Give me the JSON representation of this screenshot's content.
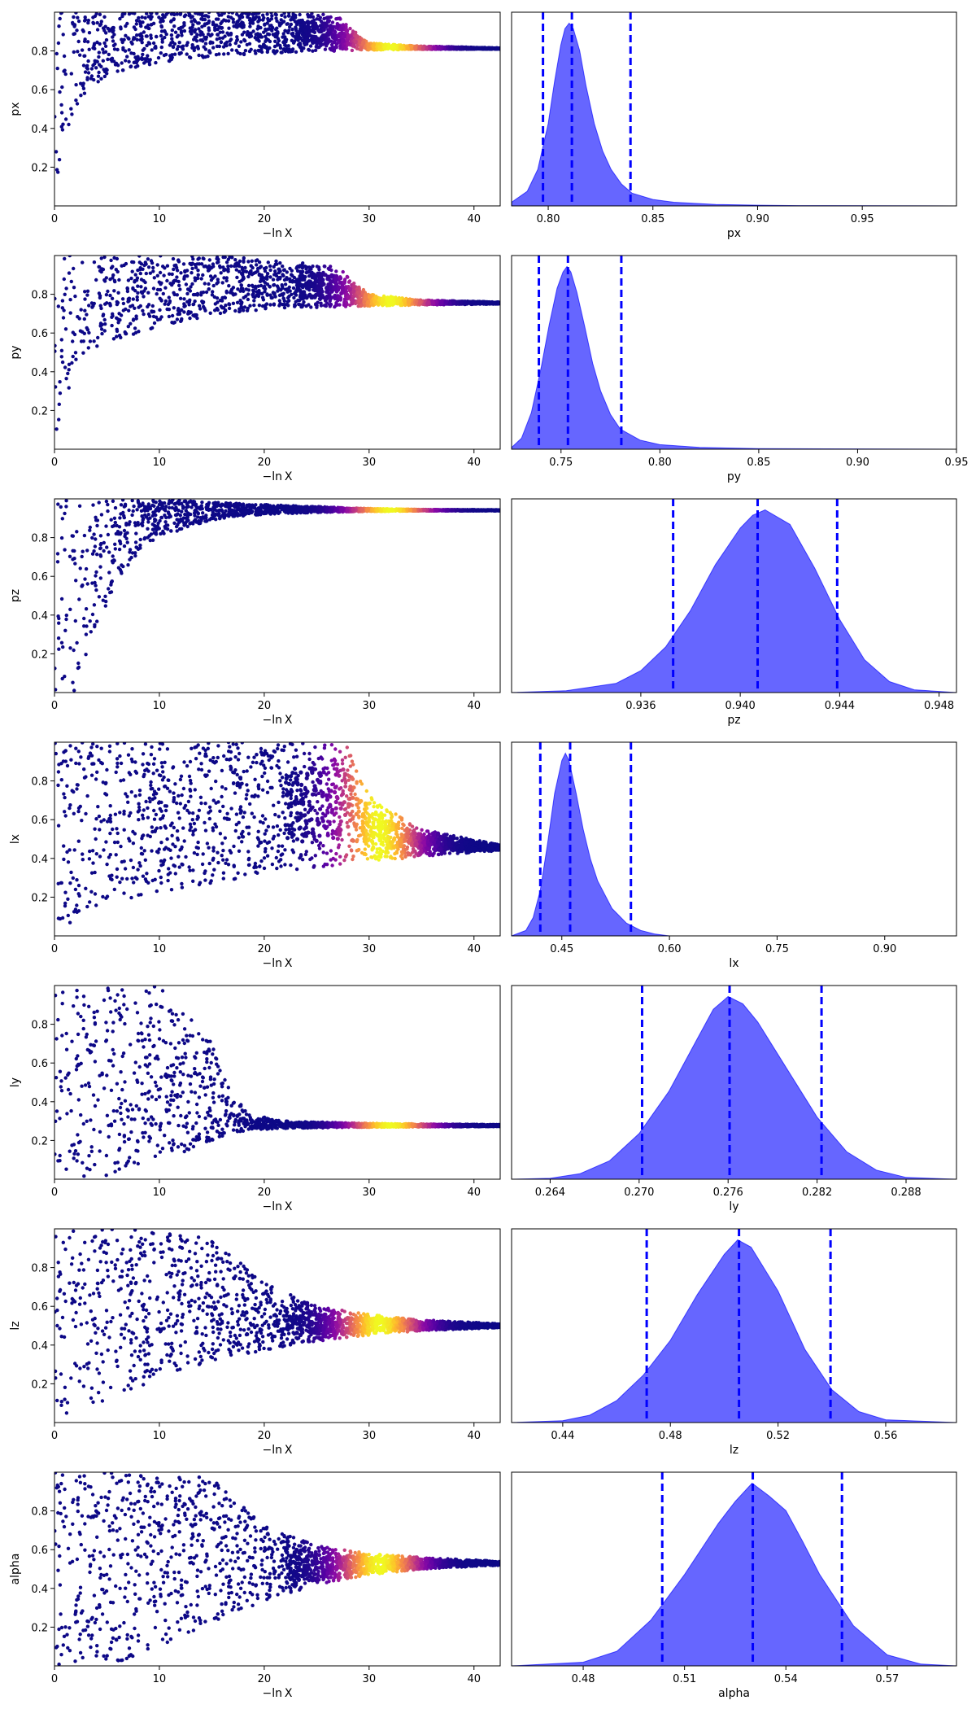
{
  "figure": {
    "colormap": "plasma",
    "scatter_base_color": "#0d0887",
    "density_color": "#0000ff",
    "quantile_line_color": "#0000ff"
  },
  "chart_data": [
    {
      "type": "scatter",
      "panel": "trace",
      "parameter": "px",
      "xlabel": "−ln X",
      "ylabel": "px",
      "xlim": [
        0,
        42.5
      ],
      "ylim": [
        0,
        1
      ],
      "xticks": [
        "0",
        "10",
        "20",
        "30",
        "40"
      ],
      "yticks": [
        "0.2",
        "0.4",
        "0.6",
        "0.8"
      ],
      "envelope": {
        "x": [
          0,
          0.5,
          1,
          2,
          3,
          5,
          8,
          12,
          16,
          20,
          24,
          27,
          30,
          35,
          42.5
        ],
        "lower": [
          0,
          0.22,
          0.36,
          0.5,
          0.58,
          0.66,
          0.72,
          0.755,
          0.775,
          0.785,
          0.795,
          0.8,
          0.805,
          0.808,
          0.81
        ],
        "upper": [
          1,
          1,
          1,
          1,
          1,
          1,
          1,
          1,
          1,
          1,
          1,
          0.98,
          0.84,
          0.825,
          0.815
        ]
      },
      "color_peak_x": 32
    },
    {
      "type": "area",
      "panel": "marginal",
      "parameter": "px",
      "xlabel": "px",
      "xlim": [
        0.7825,
        0.995
      ],
      "xticks": [
        "0.80",
        "0.85",
        "0.90",
        "0.95"
      ],
      "density": {
        "x": [
          0.7825,
          0.79,
          0.795,
          0.8,
          0.803,
          0.806,
          0.808,
          0.81,
          0.812,
          0.815,
          0.818,
          0.822,
          0.826,
          0.83,
          0.835,
          0.84,
          0.85,
          0.86,
          0.88,
          0.9,
          0.92,
          0.995
        ],
        "y": [
          0.02,
          0.08,
          0.2,
          0.45,
          0.68,
          0.88,
          0.97,
          1.0,
          0.97,
          0.85,
          0.66,
          0.45,
          0.3,
          0.2,
          0.12,
          0.07,
          0.035,
          0.02,
          0.008,
          0.004,
          0.002,
          0.0
        ]
      },
      "quantiles": [
        0.7975,
        0.8113,
        0.8393
      ]
    },
    {
      "type": "scatter",
      "panel": "trace",
      "parameter": "py",
      "xlabel": "−ln X",
      "ylabel": "py",
      "xlim": [
        0,
        42.5
      ],
      "ylim": [
        0,
        1
      ],
      "xticks": [
        "0",
        "10",
        "20",
        "30",
        "40"
      ],
      "yticks": [
        "0.2",
        "0.4",
        "0.6",
        "0.8"
      ],
      "envelope": {
        "x": [
          0,
          1,
          2,
          3,
          5,
          8,
          12,
          16,
          20,
          24,
          27,
          30,
          35,
          42.5
        ],
        "lower": [
          0,
          0.25,
          0.42,
          0.5,
          0.55,
          0.6,
          0.66,
          0.7,
          0.72,
          0.73,
          0.735,
          0.74,
          0.745,
          0.75
        ],
        "upper": [
          1,
          1,
          1,
          1,
          1,
          1,
          1,
          1,
          0.98,
          0.96,
          0.94,
          0.8,
          0.77,
          0.76
        ]
      },
      "color_peak_x": 32
    },
    {
      "type": "area",
      "panel": "marginal",
      "parameter": "py",
      "xlabel": "py",
      "xlim": [
        0.725,
        0.95
      ],
      "xticks": [
        "0.75",
        "0.80",
        "0.85",
        "0.90",
        "0.95"
      ],
      "density": {
        "x": [
          0.725,
          0.73,
          0.735,
          0.74,
          0.744,
          0.748,
          0.751,
          0.753,
          0.755,
          0.758,
          0.762,
          0.766,
          0.77,
          0.775,
          0.78,
          0.79,
          0.8,
          0.82,
          0.85,
          0.95
        ],
        "y": [
          0.01,
          0.06,
          0.2,
          0.45,
          0.68,
          0.88,
          0.97,
          1.0,
          0.97,
          0.86,
          0.67,
          0.47,
          0.32,
          0.19,
          0.11,
          0.05,
          0.025,
          0.01,
          0.003,
          0.0
        ]
      },
      "quantiles": [
        0.7388,
        0.7535,
        0.7805
      ]
    },
    {
      "type": "scatter",
      "panel": "trace",
      "parameter": "pz",
      "xlabel": "−ln X",
      "ylabel": "pz",
      "xlim": [
        0,
        42.5
      ],
      "ylim": [
        0,
        1
      ],
      "xticks": [
        "0",
        "10",
        "20",
        "30",
        "40"
      ],
      "yticks": [
        "0.2",
        "0.4",
        "0.6",
        "0.8"
      ],
      "envelope": {
        "x": [
          0,
          2,
          3,
          4,
          5,
          6,
          8,
          10,
          13,
          16,
          20,
          25,
          30,
          35,
          42.5
        ],
        "lower": [
          0,
          0,
          0.15,
          0.3,
          0.45,
          0.58,
          0.72,
          0.8,
          0.86,
          0.9,
          0.92,
          0.93,
          0.935,
          0.938,
          0.94
        ],
        "upper": [
          1,
          1,
          1,
          1,
          1,
          1,
          1,
          1,
          0.99,
          0.98,
          0.97,
          0.96,
          0.95,
          0.945,
          0.942
        ]
      },
      "color_peak_x": 32
    },
    {
      "type": "area",
      "panel": "marginal",
      "parameter": "pz",
      "xlabel": "pz",
      "xlim": [
        0.9308,
        0.9487
      ],
      "xticks": [
        "0.936",
        "0.940",
        "0.944",
        "0.948"
      ],
      "density": {
        "x": [
          0.9308,
          0.933,
          0.935,
          0.936,
          0.937,
          0.938,
          0.939,
          0.94,
          0.9405,
          0.941,
          0.942,
          0.943,
          0.944,
          0.945,
          0.946,
          0.947,
          0.9487
        ],
        "y": [
          0.0,
          0.01,
          0.05,
          0.12,
          0.25,
          0.45,
          0.7,
          0.9,
          0.97,
          1.0,
          0.92,
          0.68,
          0.4,
          0.18,
          0.06,
          0.015,
          0.0
        ]
      },
      "quantiles": [
        0.9373,
        0.9407,
        0.9439
      ]
    },
    {
      "type": "scatter",
      "panel": "trace",
      "parameter": "lx",
      "xlabel": "−ln X",
      "ylabel": "lx",
      "xlim": [
        0,
        42.5
      ],
      "ylim": [
        0,
        1
      ],
      "xticks": [
        "0",
        "10",
        "20",
        "30",
        "40"
      ],
      "yticks": [
        "0.2",
        "0.4",
        "0.6",
        "0.8"
      ],
      "envelope": {
        "x": [
          0,
          1,
          3,
          6,
          10,
          15,
          20,
          25,
          28,
          30,
          35,
          42.5
        ],
        "lower": [
          0,
          0.05,
          0.12,
          0.18,
          0.22,
          0.27,
          0.31,
          0.35,
          0.37,
          0.38,
          0.41,
          0.44
        ],
        "upper": [
          1,
          1,
          1,
          1,
          1,
          1,
          1,
          1,
          0.98,
          0.72,
          0.55,
          0.47
        ]
      },
      "color_peak_x": 31
    },
    {
      "type": "area",
      "panel": "marginal",
      "parameter": "lx",
      "xlabel": "lx",
      "xlim": [
        0.38,
        1.0
      ],
      "xticks": [
        "0.45",
        "0.60",
        "0.75",
        "0.90"
      ],
      "density": {
        "x": [
          0.38,
          0.4,
          0.41,
          0.42,
          0.43,
          0.44,
          0.45,
          0.455,
          0.46,
          0.47,
          0.48,
          0.49,
          0.5,
          0.52,
          0.54,
          0.56,
          0.58,
          0.6,
          1.0
        ],
        "y": [
          0.0,
          0.03,
          0.1,
          0.25,
          0.5,
          0.78,
          0.96,
          1.0,
          0.96,
          0.78,
          0.58,
          0.42,
          0.3,
          0.15,
          0.07,
          0.03,
          0.01,
          0.0,
          0.0
        ]
      },
      "quantiles": [
        0.42,
        0.4616,
        0.5463
      ]
    },
    {
      "type": "scatter",
      "panel": "trace",
      "parameter": "ly",
      "xlabel": "−ln X",
      "ylabel": "ly",
      "xlim": [
        0,
        42.5
      ],
      "ylim": [
        0,
        1
      ],
      "xticks": [
        "0",
        "10",
        "20",
        "30",
        "40"
      ],
      "yticks": [
        "0.2",
        "0.4",
        "0.6",
        "0.8"
      ],
      "envelope": {
        "x": [
          0,
          5,
          10,
          13,
          15,
          16,
          17,
          19,
          22,
          28,
          35,
          42.5
        ],
        "lower": [
          0,
          0.02,
          0.1,
          0.15,
          0.19,
          0.22,
          0.24,
          0.255,
          0.262,
          0.268,
          0.27,
          0.272
        ],
        "upper": [
          1,
          1,
          1,
          0.85,
          0.7,
          0.55,
          0.42,
          0.33,
          0.3,
          0.29,
          0.285,
          0.282
        ]
      },
      "color_peak_x": 32
    },
    {
      "type": "area",
      "panel": "marginal",
      "parameter": "ly",
      "xlabel": "ly",
      "xlim": [
        0.2614,
        0.2914
      ],
      "xticks": [
        "0.264",
        "0.270",
        "0.276",
        "0.282",
        "0.288"
      ],
      "density": {
        "x": [
          0.2614,
          0.264,
          0.266,
          0.268,
          0.27,
          0.272,
          0.274,
          0.275,
          0.276,
          0.277,
          0.278,
          0.28,
          0.282,
          0.284,
          0.286,
          0.288,
          0.2914
        ],
        "y": [
          0.0,
          0.005,
          0.03,
          0.1,
          0.25,
          0.48,
          0.78,
          0.93,
          1.0,
          0.96,
          0.86,
          0.6,
          0.34,
          0.15,
          0.05,
          0.01,
          0.0
        ]
      },
      "quantiles": [
        0.2702,
        0.2761,
        0.2823
      ]
    },
    {
      "type": "scatter",
      "panel": "trace",
      "parameter": "lz",
      "xlabel": "−ln X",
      "ylabel": "lz",
      "xlim": [
        0,
        42.5
      ],
      "ylim": [
        0,
        1
      ],
      "xticks": [
        "0",
        "10",
        "20",
        "30",
        "40"
      ],
      "yticks": [
        "0.2",
        "0.4",
        "0.6",
        "0.8"
      ],
      "envelope": {
        "x": [
          0,
          5,
          10,
          15,
          20,
          25,
          30,
          35,
          42.5
        ],
        "lower": [
          0,
          0.12,
          0.22,
          0.3,
          0.37,
          0.42,
          0.45,
          0.475,
          0.49
        ],
        "upper": [
          1,
          1,
          1,
          0.95,
          0.72,
          0.6,
          0.56,
          0.53,
          0.51
        ]
      },
      "color_peak_x": 31
    },
    {
      "type": "area",
      "panel": "marginal",
      "parameter": "lz",
      "xlabel": "lz",
      "xlim": [
        0.421,
        0.5863
      ],
      "xticks": [
        "0.44",
        "0.48",
        "0.52",
        "0.56"
      ],
      "density": {
        "x": [
          0.421,
          0.44,
          0.45,
          0.46,
          0.47,
          0.48,
          0.49,
          0.5,
          0.505,
          0.51,
          0.52,
          0.53,
          0.54,
          0.55,
          0.56,
          0.5863
        ],
        "y": [
          0.0,
          0.01,
          0.04,
          0.12,
          0.26,
          0.45,
          0.7,
          0.92,
          1.0,
          0.96,
          0.72,
          0.4,
          0.18,
          0.06,
          0.015,
          0.0
        ]
      },
      "quantiles": [
        0.4712,
        0.5055,
        0.5395
      ]
    },
    {
      "type": "scatter",
      "panel": "trace",
      "parameter": "alpha",
      "xlabel": "−ln X",
      "ylabel": "alpha",
      "xlim": [
        0,
        42.5
      ],
      "ylim": [
        0,
        1
      ],
      "xticks": [
        "0",
        "10",
        "20",
        "30",
        "40"
      ],
      "yticks": [
        "0.2",
        "0.4",
        "0.6",
        "0.8"
      ],
      "envelope": {
        "x": [
          0,
          5,
          10,
          15,
          20,
          25,
          30,
          35,
          42.5
        ],
        "lower": [
          0,
          0,
          0.1,
          0.22,
          0.33,
          0.42,
          0.47,
          0.5,
          0.52
        ],
        "upper": [
          1,
          1,
          1,
          0.97,
          0.72,
          0.62,
          0.58,
          0.56,
          0.54
        ]
      },
      "color_peak_x": 31
    },
    {
      "type": "area",
      "panel": "marginal",
      "parameter": "alpha",
      "xlabel": "alpha",
      "xlim": [
        0.4588,
        0.5905
      ],
      "xticks": [
        "0.48",
        "0.51",
        "0.54",
        "0.57"
      ],
      "density": {
        "x": [
          0.4588,
          0.48,
          0.49,
          0.5,
          0.51,
          0.52,
          0.525,
          0.53,
          0.535,
          0.54,
          0.545,
          0.55,
          0.56,
          0.57,
          0.58,
          0.5905
        ],
        "y": [
          0.0,
          0.02,
          0.08,
          0.25,
          0.5,
          0.78,
          0.9,
          1.0,
          0.93,
          0.85,
          0.68,
          0.5,
          0.22,
          0.06,
          0.01,
          0.0
        ]
      },
      "quantiles": [
        0.5034,
        0.5302,
        0.5566
      ]
    }
  ]
}
